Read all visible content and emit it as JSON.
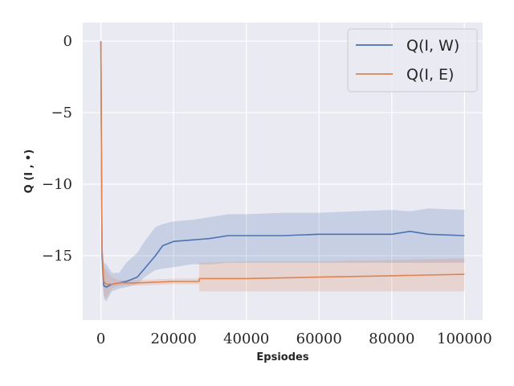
{
  "chart_data": {
    "type": "line",
    "xlabel": "Epsiodes",
    "ylabel": "Q (I , •)",
    "xlim": [
      -5000,
      105000
    ],
    "ylim": [
      -19.5,
      1.3
    ],
    "xticks": [
      0,
      20000,
      40000,
      60000,
      80000,
      100000
    ],
    "xtick_labels": [
      "0",
      "20000",
      "40000",
      "60000",
      "80000",
      "100000"
    ],
    "yticks": [
      0,
      -5,
      -10,
      -15
    ],
    "ytick_labels": [
      "0",
      "−5",
      "−10",
      "−15"
    ],
    "grid": true,
    "legend_position": "top-right",
    "series": [
      {
        "name": "Q(I, W)",
        "color": "#4c72b0",
        "x": [
          0,
          300,
          800,
          1500,
          3000,
          5000,
          7000,
          10000,
          12000,
          15000,
          17000,
          20000,
          25000,
          30000,
          35000,
          40000,
          50000,
          60000,
          70000,
          80000,
          85000,
          90000,
          100000
        ],
        "mean": [
          0,
          -15.0,
          -17.1,
          -17.2,
          -17.0,
          -16.9,
          -16.8,
          -16.5,
          -15.9,
          -15.0,
          -14.3,
          -14.0,
          -13.9,
          -13.8,
          -13.6,
          -13.6,
          -13.6,
          -13.5,
          -13.5,
          -13.5,
          -13.3,
          -13.5,
          -13.6
        ],
        "upper": [
          0,
          -14.0,
          -15.5,
          -15.6,
          -16.2,
          -16.2,
          -15.5,
          -14.8,
          -14.0,
          -13.0,
          -12.8,
          -12.6,
          -12.5,
          -12.3,
          -12.1,
          -12.1,
          -12.0,
          -12.0,
          -11.9,
          -11.8,
          -11.9,
          -11.7,
          -11.8
        ],
        "lower": [
          0,
          -16.5,
          -18.0,
          -18.2,
          -17.5,
          -17.3,
          -17.2,
          -17.0,
          -16.5,
          -16.0,
          -15.9,
          -15.8,
          -15.6,
          -15.6,
          -15.5,
          -15.5,
          -15.5,
          -15.5,
          -15.5,
          -15.5,
          -15.5,
          -15.5,
          -15.5
        ]
      },
      {
        "name": "Q(I, E)",
        "color": "#dd8452",
        "x": [
          0,
          300,
          800,
          1500,
          3000,
          5000,
          7000,
          10000,
          20000,
          27000,
          27100,
          40000,
          60000,
          80000,
          100000
        ],
        "mean": [
          0,
          -14.5,
          -16.8,
          -17.0,
          -17.0,
          -16.9,
          -16.9,
          -16.9,
          -16.8,
          -16.8,
          -16.6,
          -16.6,
          -16.5,
          -16.4,
          -16.3
        ],
        "upper": [
          0,
          -13.8,
          -15.8,
          -16.0,
          -16.5,
          -16.7,
          -16.7,
          -16.7,
          -16.6,
          -16.6,
          -15.5,
          -15.4,
          -15.4,
          -15.3,
          -15.2
        ],
        "lower": [
          0,
          -15.5,
          -17.8,
          -18.0,
          -17.3,
          -17.1,
          -17.1,
          -17.1,
          -17.0,
          -17.0,
          -17.5,
          -17.5,
          -17.5,
          -17.5,
          -17.5
        ]
      }
    ]
  }
}
